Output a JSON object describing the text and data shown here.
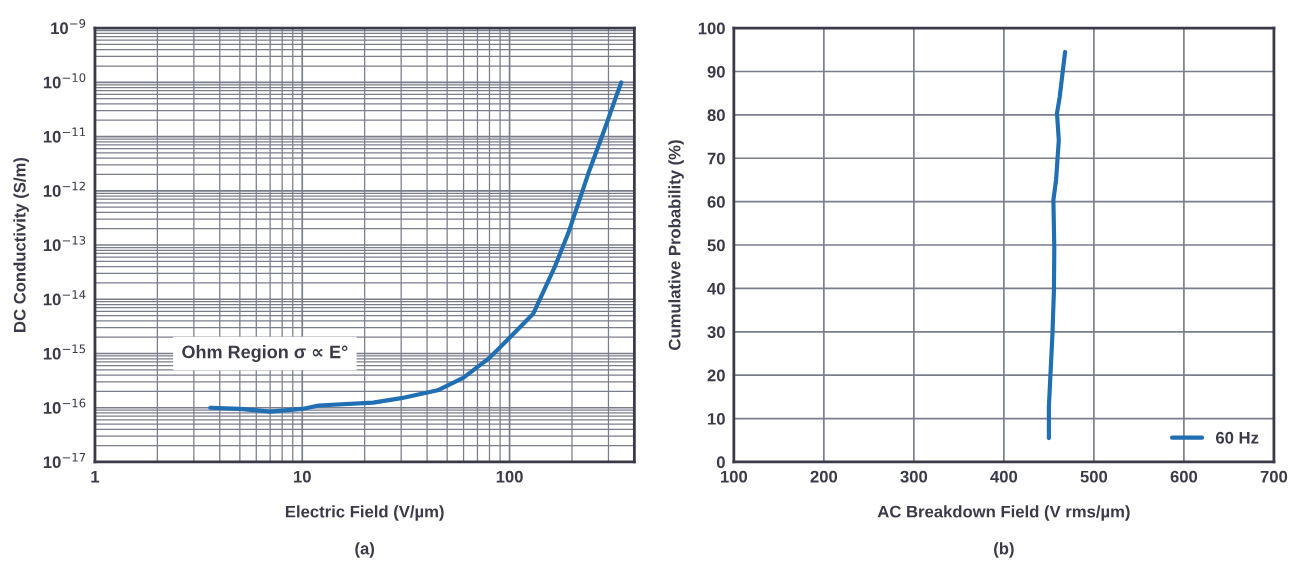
{
  "chart_data": [
    {
      "type": "line",
      "xlabel": "Electric Field (V/µm)",
      "ylabel": "DC Conductivity (S/m)",
      "log": "xy",
      "grid": true,
      "marker": "none",
      "line_style": "solid",
      "xlim": [
        1,
        400
      ],
      "xticks": [
        1,
        10,
        100
      ],
      "ylim": [
        1e-17,
        1e-09
      ],
      "yticks": [
        {
          "value": 1e-17,
          "label": "10$^{−17}$"
        },
        {
          "value": 1e-16,
          "label": "10$^{−16}$"
        },
        {
          "value": 1e-15,
          "label": "10$^{−15}$"
        },
        {
          "value": 1e-14,
          "label": "10$^{−14}$"
        },
        {
          "value": 1e-13,
          "label": "10$^{−13}$"
        },
        {
          "value": 1e-12,
          "label": "10$^{−12}$"
        },
        {
          "value": 1e-11,
          "label": "10$^{−11}$"
        },
        {
          "value": 1e-10,
          "label": "10$^{−10}$"
        },
        {
          "value": 1e-09,
          "label": "10$^{−9}$"
        }
      ],
      "series": [
        {
          "color": "#1f6fb2",
          "x": [
            3.6,
            5,
            7,
            10,
            12,
            22,
            30,
            45,
            60,
            80,
            100,
            130,
            165,
            192,
            240,
            290,
            322,
            346
          ],
          "values": [
            1e-16,
            9.5e-17,
            8.5e-17,
            9.5e-17,
            1.1e-16,
            1.24e-16,
            1.5e-16,
            2.1e-16,
            3.6e-16,
            8.3e-16,
            1.95e-15,
            5.4e-15,
            3.9e-14,
            1.66e-13,
            2.1e-12,
            1.5e-11,
            4.7e-11,
            1e-10
          ]
        }
      ],
      "annotations": [
        "Ohm Region σ ∝ E°",
        "(a)"
      ]
    },
    {
      "type": "line",
      "xlabel": "AC Breakdown Field (V rms/µm)",
      "ylabel": "Cumulative Probability (%)",
      "grid": true,
      "legend": "bottom right",
      "marker": "none",
      "line_style": "solid",
      "xlim": [
        100,
        700
      ],
      "xticks": [
        100,
        200,
        300,
        400,
        500,
        600,
        700
      ],
      "ylim": [
        0,
        100
      ],
      "yticks": [
        0,
        10,
        20,
        30,
        40,
        50,
        60,
        70,
        80,
        90,
        100
      ],
      "series": [
        {
          "name": "60 Hz",
          "color": "#1f6fb2",
          "x": [
            450,
            450,
            454,
            455.6,
            456,
            455,
            458,
            461,
            459,
            462,
            468
          ],
          "values": [
            5.5,
            12.7,
            29.7,
            39.6,
            49.5,
            60.4,
            65,
            74.2,
            80.4,
            84.1,
            94.5
          ]
        }
      ],
      "annotations": [
        "(b)"
      ]
    }
  ]
}
